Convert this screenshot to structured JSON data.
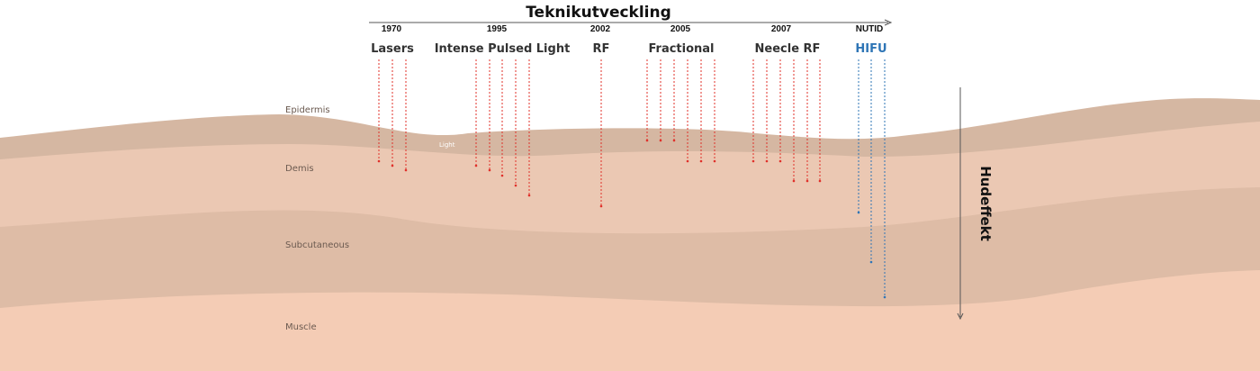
{
  "title": "Teknikutveckling",
  "timeline": {
    "years": [
      "1970",
      "1995",
      "2002",
      "2005",
      "2007",
      "NUTID"
    ]
  },
  "technologies": [
    {
      "label": "Lasers",
      "color": "#e0302a"
    },
    {
      "label": "Intense Pulsed Light",
      "color": "#e0302a"
    },
    {
      "label": "RF",
      "color": "#e0302a"
    },
    {
      "label": "Fractional",
      "color": "#e0302a"
    },
    {
      "label": "Neecle RF",
      "color": "#e0302a"
    },
    {
      "label": "HIFU",
      "color": "#2e75b6"
    }
  ],
  "layers": {
    "epidermis": "Epidermis",
    "demis": "Demis",
    "subcutaneous": "Subcutaneous",
    "muscle": "Muscle",
    "light": "Light"
  },
  "depth_axis_label": "Hudeffekt",
  "colors": {
    "epidermis": "#d5b7a2",
    "dermis": "#ebc8b3",
    "subcutaneous": "#debca6",
    "muscle": "#f4ccb5",
    "laser_lines": "#e0302a",
    "hifu_lines": "#2e75b6"
  }
}
